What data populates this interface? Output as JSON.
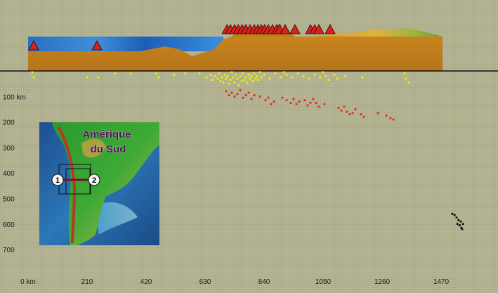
{
  "chart_data": {
    "type": "scatter",
    "title": "",
    "xlabel": "",
    "ylabel": "",
    "x_unit": "km",
    "y_unit": "km",
    "xlim": [
      0,
      1600
    ],
    "ylim": [
      0,
      800
    ],
    "y_reversed": true,
    "x_ticks": [
      0,
      210,
      420,
      630,
      840,
      1050,
      1260,
      1470
    ],
    "x_tick_labels": [
      "0 km",
      "210",
      "420",
      "630",
      "840",
      "1050",
      "1260",
      "1470"
    ],
    "y_ticks": [
      100,
      200,
      300,
      400,
      500,
      600,
      700
    ],
    "y_tick_labels": [
      "100 km",
      "200",
      "300",
      "400",
      "500",
      "600",
      "700"
    ],
    "series": [
      {
        "color": "#f2f000",
        "points": [
          [
            15,
            5
          ],
          [
            20,
            25
          ],
          [
            210,
            25
          ],
          [
            250,
            25
          ],
          [
            310,
            10
          ],
          [
            365,
            10
          ],
          [
            455,
            10
          ],
          [
            465,
            25
          ],
          [
            520,
            15
          ],
          [
            560,
            10
          ],
          [
            610,
            10
          ],
          [
            635,
            25
          ],
          [
            650,
            15
          ],
          [
            655,
            35
          ],
          [
            665,
            20
          ],
          [
            675,
            30
          ],
          [
            680,
            10
          ],
          [
            685,
            40
          ],
          [
            690,
            25
          ],
          [
            695,
            45
          ],
          [
            700,
            15
          ],
          [
            705,
            30
          ],
          [
            710,
            20
          ],
          [
            715,
            50
          ],
          [
            720,
            35
          ],
          [
            725,
            5
          ],
          [
            730,
            25
          ],
          [
            735,
            45
          ],
          [
            740,
            15
          ],
          [
            745,
            30
          ],
          [
            750,
            55
          ],
          [
            755,
            20
          ],
          [
            760,
            40
          ],
          [
            765,
            10
          ],
          [
            770,
            35
          ],
          [
            775,
            25
          ],
          [
            780,
            45
          ],
          [
            785,
            15
          ],
          [
            790,
            30
          ],
          [
            795,
            20
          ],
          [
            800,
            40
          ],
          [
            805,
            10
          ],
          [
            810,
            30
          ],
          [
            815,
            20
          ],
          [
            820,
            35
          ],
          [
            825,
            5
          ],
          [
            830,
            25
          ],
          [
            840,
            15
          ],
          [
            860,
            30
          ],
          [
            880,
            10
          ],
          [
            900,
            25
          ],
          [
            910,
            5
          ],
          [
            920,
            15
          ],
          [
            940,
            25
          ],
          [
            960,
            10
          ],
          [
            980,
            20
          ],
          [
            1000,
            30
          ],
          [
            1020,
            15
          ],
          [
            1040,
            25
          ],
          [
            1050,
            5
          ],
          [
            1060,
            20
          ],
          [
            1070,
            35
          ],
          [
            1090,
            15
          ],
          [
            1100,
            30
          ],
          [
            1130,
            20
          ],
          [
            1190,
            25
          ],
          [
            1340,
            10
          ],
          [
            1345,
            30
          ],
          [
            1355,
            45
          ]
        ]
      },
      {
        "color": "#e02a1a",
        "points": [
          [
            705,
            80
          ],
          [
            715,
            95
          ],
          [
            725,
            85
          ],
          [
            735,
            100
          ],
          [
            745,
            90
          ],
          [
            755,
            75
          ],
          [
            765,
            105
          ],
          [
            775,
            95
          ],
          [
            785,
            85
          ],
          [
            795,
            110
          ],
          [
            805,
            95
          ],
          [
            825,
            100
          ],
          [
            845,
            115
          ],
          [
            855,
            105
          ],
          [
            865,
            130
          ],
          [
            875,
            120
          ],
          [
            905,
            105
          ],
          [
            920,
            115
          ],
          [
            935,
            125
          ],
          [
            945,
            110
          ],
          [
            955,
            130
          ],
          [
            965,
            120
          ],
          [
            985,
            115
          ],
          [
            995,
            135
          ],
          [
            1005,
            125
          ],
          [
            1015,
            110
          ],
          [
            1025,
            125
          ],
          [
            1035,
            140
          ],
          [
            1055,
            130
          ],
          [
            1105,
            145
          ],
          [
            1115,
            155
          ],
          [
            1125,
            140
          ],
          [
            1135,
            160
          ],
          [
            1145,
            170
          ],
          [
            1155,
            165
          ],
          [
            1165,
            150
          ],
          [
            1185,
            170
          ],
          [
            1195,
            180
          ],
          [
            1245,
            165
          ],
          [
            1275,
            175
          ],
          [
            1290,
            185
          ],
          [
            1300,
            190
          ]
        ]
      },
      {
        "color": "#111111",
        "points": [
          [
            1510,
            560
          ],
          [
            1518,
            565
          ],
          [
            1525,
            575
          ],
          [
            1532,
            585
          ],
          [
            1528,
            600
          ],
          [
            1536,
            605
          ],
          [
            1542,
            615
          ],
          [
            1548,
            600
          ],
          [
            1540,
            590
          ],
          [
            1545,
            620
          ]
        ]
      }
    ],
    "volcanoes_km": [
      20,
      245,
      708,
      720,
      735,
      748,
      762,
      775,
      790,
      805,
      818,
      830,
      842,
      855,
      870,
      885,
      895,
      915,
      950,
      1005,
      1020,
      1035,
      1075
    ]
  },
  "inset": {
    "title_line1": "Amérique",
    "title_line2": "du Sud",
    "marker_1": "1",
    "marker_2": "2"
  }
}
